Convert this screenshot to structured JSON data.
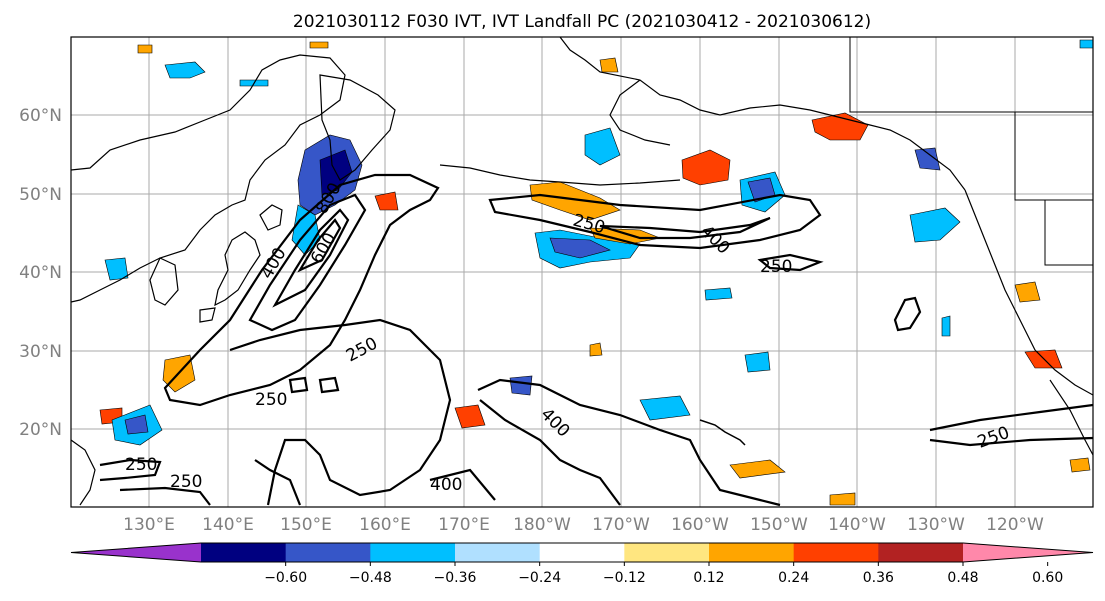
{
  "title": "2021030112 F030 IVT, IVT Landfall PC (2021030412 - 2021030612)",
  "lat_labels": [
    "60°N",
    "50°N",
    "40°N",
    "30°N",
    "20°N"
  ],
  "lon_labels": [
    "130°E",
    "140°E",
    "150°E",
    "160°E",
    "170°E",
    "180°W",
    "170°W",
    "160°W",
    "150°W",
    "140°W",
    "130°W",
    "120°W"
  ],
  "colorbar": {
    "ticks": [
      "−0.60",
      "−0.48",
      "−0.36",
      "−0.24",
      "−0.12",
      "0.12",
      "0.24",
      "0.36",
      "0.48",
      "0.60"
    ],
    "colors": [
      "#9932cc",
      "#000080",
      "#3656c8",
      "#00bfff",
      "#b0e0ff",
      "#ffffff",
      "#ffe680",
      "#ffa500",
      "#ff4000",
      "#b22222",
      "#ff88aa"
    ]
  },
  "contour_labels": [
    "250",
    "250",
    "250",
    "250",
    "250",
    "250",
    "250",
    "400",
    "400",
    "400",
    "400",
    "600",
    "800"
  ]
}
